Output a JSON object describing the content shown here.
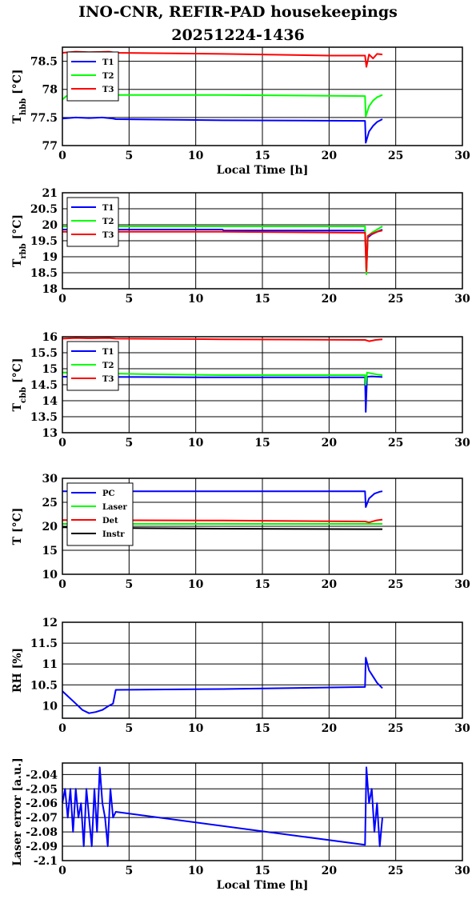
{
  "figure": {
    "title_line1": "INO-CNR, REFIR-PAD housekeepings",
    "title_line2": "20251224-1436"
  },
  "chart_data": [
    {
      "type": "line",
      "ylabel_main": "T",
      "ylabel_sub": "hbb",
      "ylabel_unit": "[°C]",
      "xlabel": "Local Time [h]",
      "xlim": [
        0,
        30
      ],
      "ylim": [
        77,
        78.75
      ],
      "xticks": [
        0,
        5,
        10,
        15,
        20,
        25,
        30
      ],
      "yticks": [
        77,
        77.5,
        78,
        78.5
      ],
      "ytick_labels": [
        "77",
        "77.5",
        "78",
        "78.5"
      ],
      "grid": true,
      "legend_placement": "top-left",
      "series": [
        {
          "name": "T1",
          "color": "#0000ff",
          "x": [
            0,
            1,
            2,
            3,
            3.8,
            4,
            12,
            22.7,
            22.75,
            23.0,
            23.3,
            23.6,
            24.0
          ],
          "y": [
            77.48,
            77.5,
            77.49,
            77.5,
            77.48,
            77.47,
            77.45,
            77.44,
            77.05,
            77.25,
            77.35,
            77.42,
            77.47
          ]
        },
        {
          "name": "T2",
          "color": "#00ff00",
          "x": [
            0,
            0.3,
            1,
            4,
            12,
            22.7,
            22.75,
            23.0,
            23.3,
            23.6,
            24.0
          ],
          "y": [
            77.82,
            77.88,
            77.9,
            77.9,
            77.9,
            77.88,
            77.52,
            77.7,
            77.8,
            77.86,
            77.9
          ]
        },
        {
          "name": "T3",
          "color": "#ff0000",
          "x": [
            0,
            1,
            2,
            3.5,
            4,
            12,
            20,
            22.7,
            22.8,
            23.0,
            23.3,
            23.6,
            24.0
          ],
          "y": [
            78.65,
            78.67,
            78.66,
            78.67,
            78.65,
            78.63,
            78.6,
            78.6,
            78.4,
            78.62,
            78.55,
            78.63,
            78.62
          ]
        }
      ]
    },
    {
      "type": "line",
      "ylabel_main": "T",
      "ylabel_sub": "rbb",
      "ylabel_unit": "[°C]",
      "xlabel": "",
      "xlim": [
        0,
        30
      ],
      "ylim": [
        18,
        21
      ],
      "xticks": [
        0,
        5,
        10,
        15,
        20,
        25,
        30
      ],
      "yticks": [
        18,
        18.5,
        19,
        19.5,
        20,
        20.5,
        21
      ],
      "ytick_labels": [
        "18",
        "18.5",
        "19",
        "19.5",
        "20",
        "20.5",
        "21"
      ],
      "grid": true,
      "legend_placement": "top-left",
      "series": [
        {
          "name": "T1",
          "color": "#0000ff",
          "x": [
            0,
            12,
            12.1,
            22.7,
            22.8,
            22.9,
            23.2,
            23.6,
            24.0
          ],
          "y": [
            19.85,
            19.85,
            19.82,
            19.82,
            18.55,
            19.6,
            19.7,
            19.78,
            19.85
          ]
        },
        {
          "name": "T2",
          "color": "#00ff00",
          "x": [
            0,
            12,
            22.7,
            22.8,
            22.9,
            23.2,
            23.6,
            24.0
          ],
          "y": [
            19.95,
            19.95,
            19.95,
            18.45,
            19.65,
            19.75,
            19.85,
            19.95
          ]
        },
        {
          "name": "T3",
          "color": "#ff0000",
          "x": [
            0,
            12,
            22.7,
            22.8,
            22.9,
            23.2,
            23.6,
            24.0
          ],
          "y": [
            19.78,
            19.78,
            19.75,
            18.55,
            19.65,
            19.72,
            19.78,
            19.82
          ]
        }
      ]
    },
    {
      "type": "line",
      "ylabel_main": "T",
      "ylabel_sub": "cbb",
      "ylabel_unit": "[°C]",
      "xlabel": "",
      "xlim": [
        0,
        30
      ],
      "ylim": [
        13,
        16
      ],
      "xticks": [
        0,
        5,
        10,
        15,
        20,
        25,
        30
      ],
      "yticks": [
        13,
        13.5,
        14,
        14.5,
        15,
        15.5,
        16
      ],
      "ytick_labels": [
        "13",
        "13.5",
        "14",
        "14.5",
        "15",
        "15.5",
        "16"
      ],
      "grid": true,
      "legend_placement": "top-left",
      "series": [
        {
          "name": "T1",
          "color": "#0000ff",
          "x": [
            0,
            6,
            12,
            22.7,
            22.75,
            22.85,
            23.2,
            23.6,
            24.0
          ],
          "y": [
            14.75,
            14.74,
            14.73,
            14.73,
            13.65,
            14.75,
            14.76,
            14.75,
            14.74
          ]
        },
        {
          "name": "T2",
          "color": "#00ff00",
          "x": [
            0,
            6,
            12,
            22.7,
            22.75,
            22.85,
            23.2,
            23.6,
            24.0
          ],
          "y": [
            14.88,
            14.83,
            14.8,
            14.8,
            14.5,
            14.88,
            14.85,
            14.82,
            14.8
          ]
        },
        {
          "name": "T3",
          "color": "#ff0000",
          "x": [
            0,
            1,
            2,
            3.5,
            4,
            12,
            22.7,
            23.0,
            23.5,
            24.0
          ],
          "y": [
            15.94,
            15.96,
            15.95,
            15.96,
            15.94,
            15.92,
            15.9,
            15.86,
            15.9,
            15.92
          ]
        }
      ]
    },
    {
      "type": "line",
      "ylabel_main": "T [°C]",
      "ylabel_sub": "",
      "ylabel_unit": "",
      "xlabel": "",
      "xlim": [
        0,
        30
      ],
      "ylim": [
        10,
        30
      ],
      "xticks": [
        0,
        5,
        10,
        15,
        20,
        25,
        30
      ],
      "yticks": [
        10,
        15,
        20,
        25,
        30
      ],
      "ytick_labels": [
        "10",
        "15",
        "20",
        "25",
        "30"
      ],
      "grid": true,
      "legend_placement": "top-left",
      "series": [
        {
          "name": "PC",
          "color": "#0000ff",
          "x": [
            0,
            12,
            22.7,
            22.75,
            23.0,
            23.4,
            23.8,
            24.0
          ],
          "y": [
            27.3,
            27.3,
            27.3,
            24.0,
            25.8,
            26.8,
            27.2,
            27.3
          ]
        },
        {
          "name": "Laser",
          "color": "#00ff00",
          "x": [
            0,
            12,
            22.7,
            24.0
          ],
          "y": [
            20.5,
            20.5,
            20.5,
            20.5
          ]
        },
        {
          "name": "Det",
          "color": "#ff0000",
          "x": [
            0,
            12,
            22.7,
            23.0,
            23.5,
            24.0
          ],
          "y": [
            21.3,
            21.2,
            21.0,
            20.8,
            21.2,
            21.4
          ]
        },
        {
          "name": "Instr",
          "color": "#000000",
          "x": [
            0,
            6,
            12,
            22.7,
            24.0
          ],
          "y": [
            19.8,
            19.6,
            19.5,
            19.4,
            19.4
          ]
        }
      ]
    },
    {
      "type": "line",
      "ylabel_main": "RH [%]",
      "ylabel_sub": "",
      "ylabel_unit": "",
      "xlabel": "",
      "xlim": [
        0,
        30
      ],
      "ylim": [
        9.7,
        12
      ],
      "xticks": [
        0,
        5,
        10,
        15,
        20,
        25,
        30
      ],
      "yticks": [
        10,
        10.5,
        11,
        11.5,
        12
      ],
      "ytick_labels": [
        "10",
        "10.5",
        "11",
        "11.5",
        "12"
      ],
      "grid": true,
      "legend_placement": "none",
      "series": [
        {
          "name": "",
          "color": "#0000ff",
          "x": [
            0,
            0.5,
            1,
            1.5,
            2,
            2.5,
            3,
            3.5,
            3.8,
            4,
            12,
            22.7,
            22.75,
            23.0,
            23.3,
            23.6,
            24.0
          ],
          "y": [
            10.35,
            10.2,
            10.05,
            9.9,
            9.82,
            9.85,
            9.9,
            10.0,
            10.05,
            10.38,
            10.4,
            10.45,
            11.15,
            10.85,
            10.7,
            10.55,
            10.42
          ]
        }
      ]
    },
    {
      "type": "line",
      "ylabel_main": "Laser error [a.u.]",
      "ylabel_sub": "",
      "ylabel_unit": "",
      "xlabel": "Local Time [h]",
      "xlim": [
        0,
        30
      ],
      "ylim": [
        -2.1,
        -2.032
      ],
      "xticks": [
        0,
        5,
        10,
        15,
        20,
        25,
        30
      ],
      "yticks": [
        -2.1,
        -2.09,
        -2.08,
        -2.07,
        -2.06,
        -2.05,
        -2.04
      ],
      "ytick_labels": [
        "-2.1",
        "-2.09",
        "-2.08",
        "-2.07",
        "-2.06",
        "-2.05",
        "-2.04"
      ],
      "grid": true,
      "legend_placement": "none",
      "series": [
        {
          "name": "",
          "color": "#0000ff",
          "x": [
            0,
            0.2,
            0.4,
            0.6,
            0.8,
            1.0,
            1.2,
            1.4,
            1.6,
            1.8,
            2.0,
            2.2,
            2.4,
            2.6,
            2.8,
            3.0,
            3.2,
            3.4,
            3.6,
            3.8,
            4.0,
            22.7,
            22.8,
            23.0,
            23.2,
            23.4,
            23.6,
            23.8,
            24.0
          ],
          "y": [
            -2.06,
            -2.05,
            -2.07,
            -2.05,
            -2.08,
            -2.05,
            -2.07,
            -2.06,
            -2.09,
            -2.05,
            -2.07,
            -2.09,
            -2.05,
            -2.08,
            -2.035,
            -2.06,
            -2.07,
            -2.09,
            -2.05,
            -2.07,
            -2.066,
            -2.089,
            -2.035,
            -2.06,
            -2.05,
            -2.08,
            -2.06,
            -2.09,
            -2.07
          ]
        }
      ]
    }
  ]
}
